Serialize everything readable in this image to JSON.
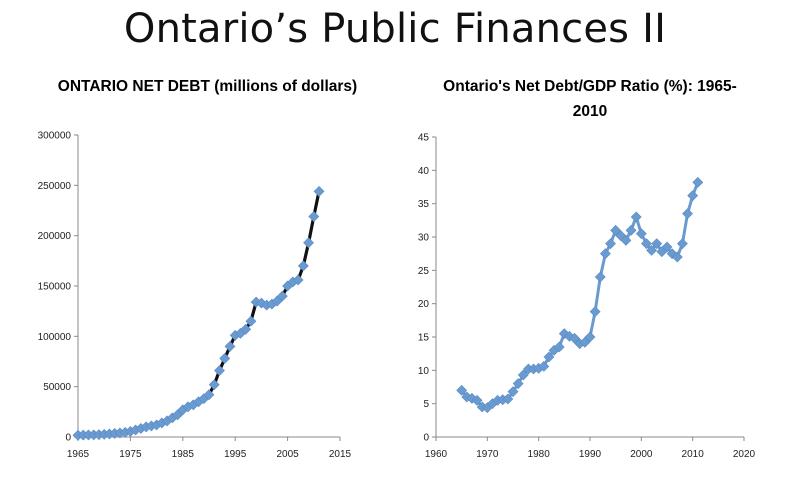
{
  "slide": {
    "title": "Ontario’s Public Finances II"
  },
  "chart_data": [
    {
      "type": "line",
      "title": "ONTARIO NET DEBT (millions of dollars)",
      "xlabel": "",
      "ylabel": "",
      "xlim": [
        1965,
        2015
      ],
      "ylim": [
        0,
        300000
      ],
      "x_ticks": [
        "1965",
        "1975",
        "1985",
        "1995",
        "2005",
        "2015"
      ],
      "y_ticks": [
        "0",
        "50000",
        "100000",
        "150000",
        "200000",
        "250000",
        "300000"
      ],
      "grid": false,
      "legend": "none",
      "colors": {
        "line": "#111111",
        "marker": "#6a9bd0"
      },
      "series": [
        {
          "x": [
            1965,
            1966,
            1967,
            1968,
            1969,
            1970,
            1971,
            1972,
            1973,
            1974,
            1975,
            1976,
            1977,
            1978,
            1979,
            1980,
            1981,
            1982,
            1983,
            1984,
            1985,
            1986,
            1987,
            1988,
            1989,
            1990,
            1991,
            1992,
            1993,
            1994,
            1995,
            1996,
            1997,
            1998,
            1999,
            2000,
            2001,
            2002,
            2003,
            2004,
            2005,
            2006,
            2007,
            2008,
            2009,
            2010,
            2011
          ],
          "y": [
            1800,
            1900,
            2000,
            2100,
            2300,
            2600,
            3000,
            3500,
            4000,
            4600,
            5500,
            7000,
            8500,
            10000,
            11000,
            12000,
            14000,
            16000,
            19000,
            22000,
            27000,
            30000,
            32000,
            35000,
            38000,
            42000,
            52000,
            66000,
            78000,
            90000,
            101000,
            103000,
            107000,
            115000,
            134000,
            133000,
            131000,
            132000,
            135000,
            140000,
            150000,
            154000,
            156000,
            170000,
            193000,
            219000,
            244000
          ]
        }
      ]
    },
    {
      "type": "line",
      "title": "Ontario's Net Debt/GDP Ratio (%): 1965-2010",
      "xlabel": "",
      "ylabel": "",
      "xlim": [
        1960,
        2020
      ],
      "ylim": [
        0,
        45
      ],
      "x_ticks": [
        "1960",
        "1970",
        "1980",
        "1990",
        "2000",
        "2010",
        "2020"
      ],
      "y_ticks": [
        "0",
        "5",
        "10",
        "15",
        "20",
        "25",
        "30",
        "35",
        "40",
        "45"
      ],
      "grid": false,
      "legend": "none",
      "colors": {
        "line": "#6a9bd0",
        "marker": "#6a9bd0"
      },
      "series": [
        {
          "x": [
            1965,
            1966,
            1967,
            1968,
            1969,
            1970,
            1971,
            1972,
            1973,
            1974,
            1975,
            1976,
            1977,
            1978,
            1979,
            1980,
            1981,
            1982,
            1983,
            1984,
            1985,
            1986,
            1987,
            1988,
            1989,
            1990,
            1991,
            1992,
            1993,
            1994,
            1995,
            1996,
            1997,
            1998,
            1999,
            2000,
            2001,
            2002,
            2003,
            2004,
            2005,
            2006,
            2007,
            2008,
            2009,
            2010,
            2011
          ],
          "y": [
            7,
            6,
            5.8,
            5.5,
            4.5,
            4.4,
            5,
            5.5,
            5.6,
            5.7,
            6.8,
            8,
            9.3,
            10.2,
            10.2,
            10.3,
            10.6,
            12,
            13,
            13.5,
            15.5,
            15.1,
            14.8,
            14,
            14.2,
            15,
            18.8,
            24,
            27.5,
            29,
            31,
            30.2,
            29.5,
            31,
            33,
            30.5,
            29,
            28,
            29,
            27.8,
            28.5,
            27.5,
            27,
            29,
            33.5,
            36.2,
            38.2
          ]
        }
      ]
    }
  ]
}
